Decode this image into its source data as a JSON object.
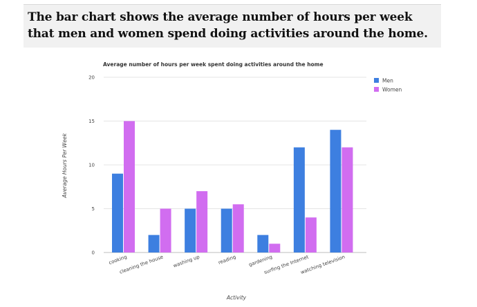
{
  "header": {
    "text": "The bar chart shows the average number of hours per week that men and women spend doing activities around the home."
  },
  "chart_data": {
    "type": "bar",
    "title": "Average number of hours per week spent doing activities around the home",
    "xlabel": "Activity",
    "ylabel": "Average Hours Per Week",
    "ylim": [
      0,
      20
    ],
    "yticks": [
      0,
      5,
      10,
      15,
      20
    ],
    "grid": true,
    "legend_position": "top-right",
    "categories": [
      "cooking",
      "cleaning the house",
      "washing up",
      "reading",
      "gardening",
      "surfing the Internet",
      "watching television"
    ],
    "series": [
      {
        "name": "Men",
        "color": "#3d7fe0",
        "values": [
          9,
          2,
          5,
          5,
          2,
          12,
          14
        ]
      },
      {
        "name": "Women",
        "color": "#d16df0",
        "values": [
          15,
          5,
          7,
          5.5,
          1,
          4,
          12
        ]
      }
    ]
  }
}
